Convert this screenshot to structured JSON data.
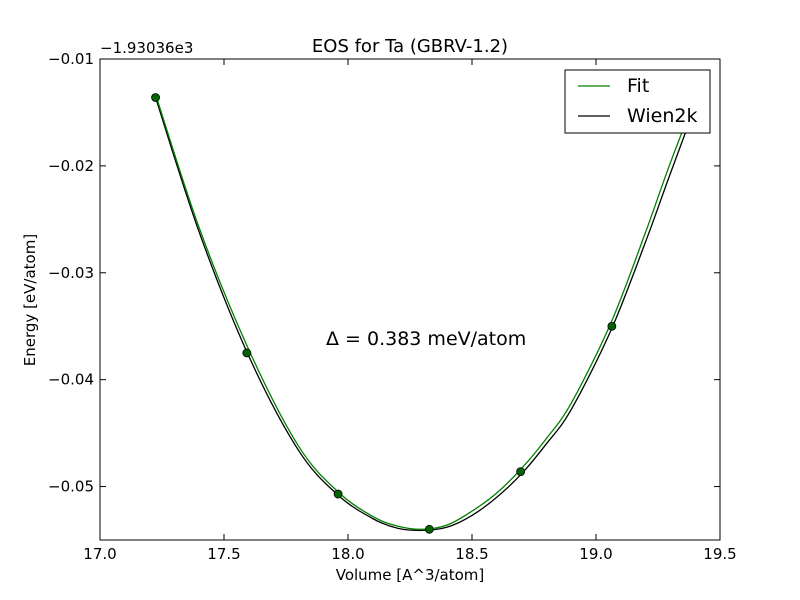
{
  "chart_data": {
    "type": "line",
    "title": "EOS for Ta (GBRV-1.2)",
    "xlabel": "Volume [A^3/atom]",
    "ylabel": "Energy [eV/atom]",
    "y_offset_label": "−1.93036e3",
    "xlim": [
      17.0,
      19.5
    ],
    "ylim": [
      -0.055,
      -0.01
    ],
    "x_ticks": [
      17.0,
      17.5,
      18.0,
      18.5,
      19.0,
      19.5
    ],
    "x_tick_labels": [
      "17.0",
      "17.5",
      "18.0",
      "18.5",
      "19.0",
      "19.5"
    ],
    "y_ticks": [
      -0.05,
      -0.04,
      -0.03,
      -0.02,
      -0.01
    ],
    "y_tick_labels": [
      "−0.05",
      "−0.04",
      "−0.03",
      "−0.02",
      "−0.01"
    ],
    "annotation": "Δ = 0.383 meV/atom",
    "legend_position": "top-right",
    "grid": false,
    "series": [
      {
        "name": "Fit",
        "color": "#008000",
        "x": [
          17.224,
          17.4,
          17.6,
          17.8,
          17.96,
          18.1,
          18.2,
          18.3,
          18.4,
          18.5,
          18.6,
          18.7,
          18.8,
          18.9,
          19.06,
          19.2,
          19.3,
          19.44
        ],
        "y": [
          -0.0133,
          -0.0258,
          -0.0372,
          -0.0462,
          -0.0505,
          -0.0528,
          -0.0537,
          -0.054,
          -0.0536,
          -0.0523,
          -0.0506,
          -0.0483,
          -0.0455,
          -0.0422,
          -0.0347,
          -0.0262,
          -0.0197,
          -0.0113
        ]
      },
      {
        "name": "Wien2k",
        "color": "#000000",
        "x": [
          17.224,
          17.4,
          17.6,
          17.8,
          17.96,
          18.1,
          18.2,
          18.3,
          18.4,
          18.5,
          18.6,
          18.7,
          18.8,
          18.9,
          19.06,
          19.2,
          19.3,
          19.45
        ],
        "y": [
          -0.0136,
          -0.0262,
          -0.0378,
          -0.0466,
          -0.0508,
          -0.053,
          -0.0539,
          -0.0541,
          -0.0538,
          -0.0527,
          -0.051,
          -0.0488,
          -0.046,
          -0.0428,
          -0.0354,
          -0.0271,
          -0.0207,
          -0.0113
        ]
      },
      {
        "name": "",
        "mode": "markers",
        "color": "#006400",
        "x": [
          17.224,
          17.592,
          17.96,
          18.328,
          18.696,
          19.064
        ],
        "y": [
          -0.0136,
          -0.0375,
          -0.0507,
          -0.054,
          -0.0486,
          -0.035
        ]
      }
    ]
  }
}
